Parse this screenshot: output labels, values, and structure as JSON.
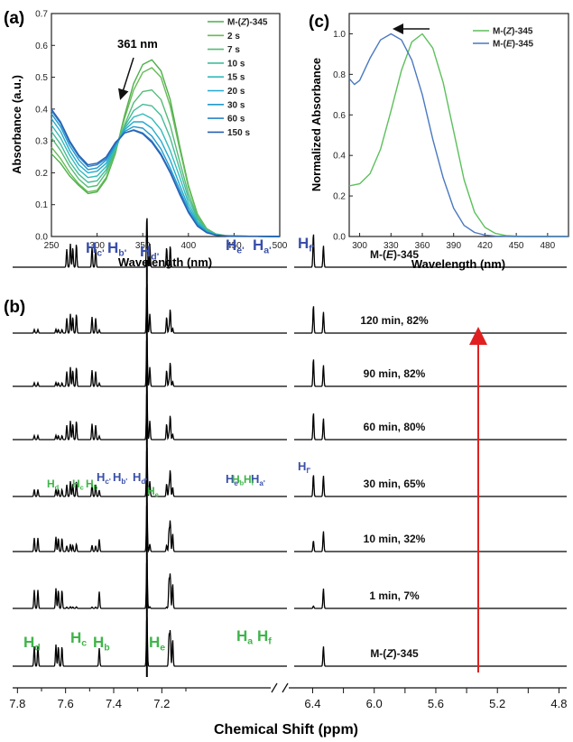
{
  "panels": {
    "a": "(a)",
    "b": "(b)",
    "c": "(c)"
  },
  "chart_data": [
    {
      "id": "a",
      "type": "line",
      "xlabel": "Wavelength (nm)",
      "ylabel": "Absorbance (a.u.)",
      "xlim": [
        250,
        500
      ],
      "ylim": [
        0,
        0.7
      ],
      "xticks": [
        250,
        300,
        350,
        400,
        450,
        500
      ],
      "yticks": [
        0.0,
        0.1,
        0.2,
        0.3,
        0.4,
        0.5,
        0.6,
        0.7
      ],
      "legend_position": "top-right",
      "annotation": "361 nm",
      "series": [
        {
          "name": "M-(Z)-345",
          "color": "#4daf4a",
          "x": [
            250,
            260,
            270,
            280,
            290,
            300,
            310,
            320,
            330,
            340,
            350,
            360,
            370,
            380,
            390,
            400,
            410,
            420,
            430,
            440,
            450,
            500
          ],
          "y": [
            0.26,
            0.23,
            0.19,
            0.16,
            0.135,
            0.14,
            0.18,
            0.26,
            0.38,
            0.48,
            0.54,
            0.555,
            0.52,
            0.43,
            0.29,
            0.16,
            0.07,
            0.025,
            0.008,
            0.003,
            0.001,
            0.0
          ]
        },
        {
          "name": "2 s",
          "color": "#66bb55",
          "x": [
            250,
            260,
            270,
            280,
            290,
            300,
            310,
            320,
            330,
            340,
            350,
            360,
            370,
            380,
            390,
            400,
            410,
            420,
            430,
            440,
            450,
            500
          ],
          "y": [
            0.28,
            0.245,
            0.2,
            0.165,
            0.14,
            0.145,
            0.185,
            0.265,
            0.37,
            0.46,
            0.515,
            0.53,
            0.5,
            0.41,
            0.28,
            0.155,
            0.068,
            0.024,
            0.008,
            0.003,
            0.001,
            0.0
          ]
        },
        {
          "name": "7 s",
          "color": "#55bb77",
          "x": [
            250,
            260,
            270,
            280,
            290,
            300,
            310,
            320,
            330,
            340,
            350,
            360,
            370,
            380,
            390,
            400,
            410,
            420,
            430,
            440,
            450,
            500
          ],
          "y": [
            0.31,
            0.27,
            0.22,
            0.18,
            0.155,
            0.16,
            0.2,
            0.27,
            0.35,
            0.42,
            0.455,
            0.46,
            0.43,
            0.35,
            0.24,
            0.135,
            0.06,
            0.022,
            0.007,
            0.002,
            0.001,
            0.0
          ]
        },
        {
          "name": "10 s",
          "color": "#44bb99",
          "x": [
            250,
            260,
            270,
            280,
            290,
            300,
            310,
            320,
            330,
            340,
            350,
            360,
            370,
            380,
            390,
            400,
            410,
            420,
            430,
            440,
            450,
            500
          ],
          "y": [
            0.33,
            0.29,
            0.235,
            0.195,
            0.17,
            0.175,
            0.21,
            0.275,
            0.345,
            0.395,
            0.415,
            0.41,
            0.38,
            0.31,
            0.215,
            0.12,
            0.055,
            0.02,
            0.007,
            0.002,
            0.001,
            0.0
          ]
        },
        {
          "name": "15 s",
          "color": "#33bbbb",
          "x": [
            250,
            260,
            270,
            280,
            290,
            300,
            310,
            320,
            330,
            340,
            350,
            360,
            370,
            380,
            390,
            400,
            410,
            420,
            430,
            440,
            450,
            500
          ],
          "y": [
            0.35,
            0.31,
            0.255,
            0.21,
            0.185,
            0.19,
            0.22,
            0.28,
            0.34,
            0.375,
            0.385,
            0.37,
            0.335,
            0.27,
            0.19,
            0.105,
            0.048,
            0.018,
            0.006,
            0.002,
            0.001,
            0.0
          ]
        },
        {
          "name": "20 s",
          "color": "#22aacc",
          "x": [
            250,
            260,
            270,
            280,
            290,
            300,
            310,
            320,
            330,
            340,
            350,
            360,
            370,
            380,
            390,
            400,
            410,
            420,
            430,
            440,
            450,
            500
          ],
          "y": [
            0.37,
            0.33,
            0.27,
            0.225,
            0.2,
            0.205,
            0.23,
            0.285,
            0.335,
            0.36,
            0.36,
            0.34,
            0.3,
            0.24,
            0.165,
            0.093,
            0.042,
            0.016,
            0.005,
            0.002,
            0.001,
            0.0
          ]
        },
        {
          "name": "30 s",
          "color": "#2299cc",
          "x": [
            250,
            260,
            270,
            280,
            290,
            300,
            310,
            320,
            330,
            340,
            350,
            360,
            370,
            380,
            390,
            400,
            410,
            420,
            430,
            440,
            450,
            500
          ],
          "y": [
            0.385,
            0.345,
            0.285,
            0.24,
            0.21,
            0.215,
            0.24,
            0.29,
            0.33,
            0.345,
            0.34,
            0.315,
            0.275,
            0.215,
            0.15,
            0.083,
            0.037,
            0.014,
            0.005,
            0.002,
            0.001,
            0.0
          ]
        },
        {
          "name": "60 s",
          "color": "#2a80c8",
          "x": [
            250,
            260,
            270,
            280,
            290,
            300,
            310,
            320,
            330,
            340,
            350,
            360,
            370,
            380,
            390,
            400,
            410,
            420,
            430,
            440,
            450,
            500
          ],
          "y": [
            0.395,
            0.355,
            0.295,
            0.25,
            0.22,
            0.225,
            0.245,
            0.29,
            0.325,
            0.335,
            0.325,
            0.3,
            0.26,
            0.205,
            0.14,
            0.078,
            0.034,
            0.013,
            0.004,
            0.002,
            0.001,
            0.0
          ]
        },
        {
          "name": "150 s",
          "color": "#2b5fb4",
          "x": [
            250,
            260,
            270,
            280,
            290,
            300,
            310,
            320,
            330,
            340,
            350,
            360,
            370,
            380,
            390,
            400,
            410,
            420,
            430,
            440,
            450,
            500
          ],
          "y": [
            0.4,
            0.36,
            0.3,
            0.255,
            0.225,
            0.23,
            0.25,
            0.295,
            0.325,
            0.333,
            0.322,
            0.295,
            0.255,
            0.2,
            0.135,
            0.075,
            0.032,
            0.012,
            0.004,
            0.002,
            0.001,
            0.0
          ]
        }
      ]
    },
    {
      "id": "c",
      "type": "line",
      "xlabel": "Wavelength (nm)",
      "ylabel": "Normalized Absorbance",
      "xlim": [
        290,
        500
      ],
      "ylim": [
        0,
        1.1
      ],
      "xticks": [
        300,
        330,
        360,
        390,
        420,
        450,
        480
      ],
      "yticks": [
        0.0,
        0.2,
        0.4,
        0.6,
        0.8,
        1.0
      ],
      "legend_position": "top-right",
      "series": [
        {
          "name": "M-(Z)-345",
          "color": "#5cc05c",
          "x": [
            290,
            300,
            310,
            320,
            330,
            340,
            350,
            360,
            370,
            380,
            390,
            400,
            410,
            420,
            430,
            440,
            450,
            460,
            500
          ],
          "y": [
            0.25,
            0.26,
            0.31,
            0.43,
            0.62,
            0.82,
            0.96,
            1.0,
            0.93,
            0.76,
            0.52,
            0.28,
            0.12,
            0.045,
            0.015,
            0.005,
            0.002,
            0.0,
            0.0
          ]
        },
        {
          "name": "M-(E)-345",
          "color": "#4a78c0",
          "x": [
            290,
            295,
            300,
            310,
            320,
            330,
            340,
            350,
            360,
            370,
            380,
            390,
            400,
            410,
            420,
            430,
            440,
            450,
            500
          ],
          "y": [
            0.78,
            0.75,
            0.77,
            0.88,
            0.97,
            1.0,
            0.97,
            0.87,
            0.7,
            0.48,
            0.29,
            0.14,
            0.055,
            0.02,
            0.007,
            0.002,
            0.001,
            0.0,
            0.0
          ]
        }
      ]
    },
    {
      "id": "b",
      "type": "line",
      "title": "",
      "xlabel": "Chemical Shift (ppm)",
      "xticks_left": [
        "7.8",
        "7.6",
        "7.4",
        "7.2"
      ],
      "xticks_right": [
        "6.4",
        "6.0",
        "5.6",
        "5.2",
        "4.8"
      ],
      "axis_break": "6.65–7.10 ppm",
      "spectra": [
        {
          "label": "M-(E)-345"
        },
        {
          "label": "120 min, 82%"
        },
        {
          "label": "90 min, 82%"
        },
        {
          "label": "60 min, 80%"
        },
        {
          "label": "30 min, 65%"
        },
        {
          "label": "10 min, 32%"
        },
        {
          "label": "1 min, 7%"
        },
        {
          "label": "M-(Z)-345"
        }
      ],
      "peak_labels": {
        "top": [
          "Hc'",
          "Hb'",
          "Hd'",
          "He'",
          "Ha'",
          "Hf'"
        ],
        "mixed_blue": [
          "Hc'",
          "Hb'",
          "Hd'",
          "He'",
          "Ha'",
          "Hf'"
        ],
        "mixed_green": [
          "Hd",
          "Hc",
          "Hb",
          "He",
          "Hb",
          "Hf"
        ],
        "bottom": [
          "Hd",
          "Hc",
          "Hb",
          "He",
          "Ha",
          "Hf"
        ]
      },
      "arrow_color": "#e02020"
    }
  ]
}
